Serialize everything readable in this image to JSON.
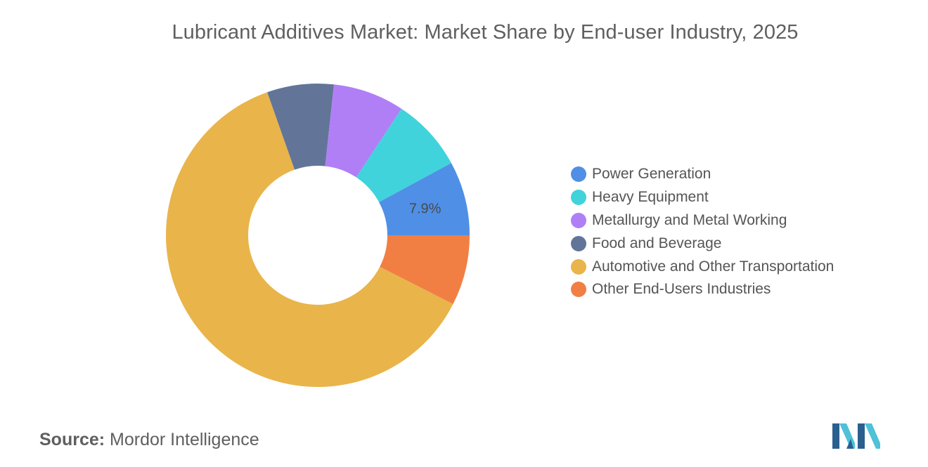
{
  "chart_data": {
    "type": "pie",
    "style": "donut",
    "title": "Lubricant Additives Market: Market Share by End-user Industry, 2025",
    "categories": [
      "Power Generation",
      "Heavy Equipment",
      "Metallurgy and Metal Working",
      "Food and Beverage",
      "Automotive and Other Transportation",
      "Other End-Users Industries"
    ],
    "values": [
      7.9,
      7.8,
      7.6,
      7.1,
      62.1,
      7.5
    ],
    "colors": [
      "#4f8fe6",
      "#40d3db",
      "#b07ff6",
      "#627598",
      "#e9b44a",
      "#f17f44"
    ],
    "data_labels": [
      {
        "index": 0,
        "text": "7.9%"
      }
    ],
    "legend_position": "right"
  },
  "source": {
    "label": "Source:",
    "value": "Mordor Intelligence"
  },
  "logo": {
    "icon": "mordor-intelligence-logo",
    "colors": [
      "#2a5f8f",
      "#4fc1d8"
    ]
  }
}
